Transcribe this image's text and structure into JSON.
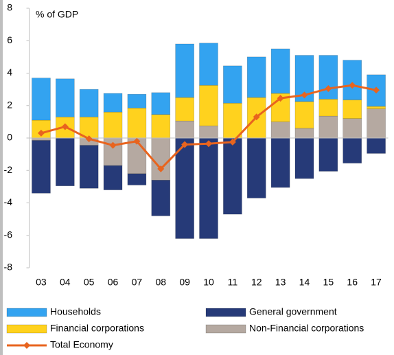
{
  "chart_data": {
    "type": "bar",
    "stacked": true,
    "annotation": "% of GDP",
    "categories": [
      "03",
      "04",
      "05",
      "06",
      "07",
      "08",
      "09",
      "10",
      "11",
      "12",
      "13",
      "14",
      "15",
      "16",
      "17"
    ],
    "series": [
      {
        "name": "Households",
        "color": "#33a3f0",
        "values": [
          2.6,
          2.35,
          1.7,
          1.15,
          0.85,
          1.35,
          3.3,
          2.6,
          2.3,
          2.5,
          2.75,
          2.85,
          2.7,
          2.45,
          1.95
        ]
      },
      {
        "name": "General government",
        "color": "#263a78",
        "values": [
          -3.25,
          -2.95,
          -2.65,
          -1.5,
          -0.7,
          -2.2,
          -6.2,
          -6.2,
          -4.7,
          -3.7,
          -3.05,
          -2.5,
          -2.05,
          -1.55,
          -0.95
        ]
      },
      {
        "name": "Financial corporations",
        "color": "#ffd21e",
        "values": [
          1.1,
          1.3,
          1.3,
          1.6,
          1.85,
          1.45,
          1.45,
          2.5,
          2.15,
          2.5,
          1.75,
          1.65,
          1.05,
          1.15,
          0.15
        ]
      },
      {
        "name": "Non-Financial corporations",
        "color": "#b5a9a1",
        "values": [
          -0.15,
          0,
          -0.45,
          -1.7,
          -2.2,
          -2.6,
          1.05,
          0.75,
          0,
          0,
          1.0,
          0.6,
          1.35,
          1.2,
          1.8
        ]
      },
      {
        "name": "Total Economy",
        "type": "line",
        "color": "#e8641e",
        "values": [
          0.3,
          0.7,
          -0.05,
          -0.45,
          -0.2,
          -1.9,
          -0.4,
          -0.35,
          -0.25,
          1.3,
          2.45,
          2.65,
          3.05,
          3.25,
          2.95
        ]
      }
    ],
    "ylim": [
      -8,
      8
    ],
    "yticks": [
      -8,
      -6,
      -4,
      -2,
      0,
      2,
      4,
      6,
      8
    ]
  }
}
